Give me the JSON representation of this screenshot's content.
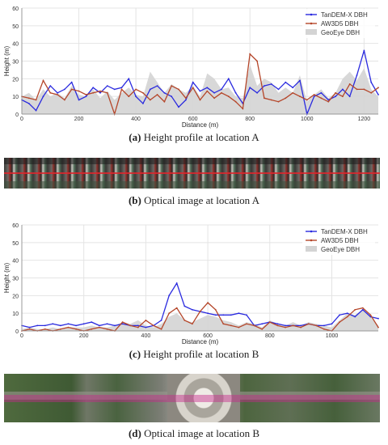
{
  "chart_data": [
    {
      "type": "line",
      "xlabel": "Distance (m)",
      "ylabel": "Height (m)",
      "xlim": [
        0,
        1250
      ],
      "ylim": [
        0,
        60
      ],
      "xticks": [
        0,
        200,
        400,
        600,
        800,
        1000,
        1200
      ],
      "yticks": [
        0,
        10,
        20,
        30,
        40,
        50,
        60
      ],
      "grid": true,
      "legend_position": "top-right",
      "x": [
        0,
        25,
        50,
        75,
        100,
        125,
        150,
        175,
        200,
        225,
        250,
        275,
        300,
        325,
        350,
        375,
        400,
        425,
        450,
        475,
        500,
        525,
        550,
        575,
        600,
        625,
        650,
        675,
        700,
        725,
        750,
        775,
        800,
        825,
        850,
        875,
        900,
        925,
        950,
        975,
        1000,
        1025,
        1050,
        1075,
        1100,
        1125,
        1150,
        1175,
        1200,
        1225,
        1250
      ],
      "series": [
        {
          "name": "TanDEM-X DBH",
          "color": "#2a2adf",
          "kind": "line",
          "values": [
            8,
            6,
            2,
            10,
            16,
            12,
            14,
            18,
            8,
            10,
            15,
            12,
            16,
            14,
            15,
            20,
            10,
            6,
            14,
            16,
            12,
            10,
            4,
            8,
            18,
            13,
            15,
            12,
            14,
            20,
            12,
            6,
            15,
            12,
            16,
            17,
            14,
            18,
            15,
            19,
            0,
            10,
            12,
            8,
            10,
            14,
            10,
            22,
            36,
            18,
            11
          ]
        },
        {
          "name": "AW3D5 DBH",
          "color": "#b5462a",
          "kind": "line",
          "values": [
            10,
            9,
            8,
            19,
            12,
            11,
            8,
            14,
            13,
            11,
            12,
            13,
            12,
            0,
            14,
            10,
            14,
            12,
            8,
            11,
            7,
            16,
            14,
            9,
            15,
            8,
            13,
            9,
            12,
            10,
            7,
            3,
            34,
            30,
            9,
            8,
            7,
            9,
            12,
            10,
            8,
            11,
            9,
            7,
            12,
            10,
            17,
            14,
            14,
            12,
            15
          ]
        },
        {
          "name": "GeoEye DBH",
          "color": "#d4d4d4",
          "kind": "area",
          "values": [
            10,
            12,
            8,
            14,
            10,
            12,
            9,
            16,
            11,
            10,
            14,
            9,
            13,
            8,
            12,
            15,
            11,
            10,
            24,
            18,
            12,
            17,
            14,
            12,
            16,
            10,
            23,
            20,
            14,
            15,
            10,
            9,
            28,
            16,
            20,
            18,
            12,
            15,
            12,
            22,
            7,
            11,
            14,
            9,
            12,
            20,
            24,
            19,
            26,
            14,
            10
          ]
        }
      ]
    },
    {
      "type": "line",
      "xlabel": "Distance (m)",
      "ylabel": "Height (m)",
      "xlim": [
        0,
        1150
      ],
      "ylim": [
        0,
        60
      ],
      "xticks": [
        0,
        200,
        400,
        600,
        800,
        1000
      ],
      "yticks": [
        0,
        10,
        20,
        30,
        40,
        50,
        60
      ],
      "grid": true,
      "legend_position": "top-right",
      "x": [
        0,
        25,
        50,
        75,
        100,
        125,
        150,
        175,
        200,
        225,
        250,
        275,
        300,
        325,
        350,
        375,
        400,
        425,
        450,
        475,
        500,
        525,
        550,
        575,
        600,
        625,
        650,
        675,
        700,
        725,
        750,
        775,
        800,
        825,
        850,
        875,
        900,
        925,
        950,
        975,
        1000,
        1025,
        1050,
        1075,
        1100,
        1125,
        1150
      ],
      "series": [
        {
          "name": "TanDEM-X DBH",
          "color": "#2a2adf",
          "kind": "line",
          "values": [
            3,
            2,
            3,
            3,
            4,
            3,
            4,
            3,
            4,
            5,
            3,
            4,
            3,
            4,
            3,
            3,
            2,
            3,
            6,
            20,
            27,
            14,
            12,
            11,
            10,
            9,
            9,
            9,
            10,
            9,
            3,
            4,
            5,
            4,
            3,
            3,
            3,
            4,
            3,
            3,
            4,
            9,
            10,
            8,
            12,
            8,
            7
          ]
        },
        {
          "name": "AW3D5 DBH",
          "color": "#b5462a",
          "kind": "line",
          "values": [
            0,
            1,
            0,
            1,
            0,
            1,
            2,
            1,
            0,
            1,
            2,
            1,
            0,
            5,
            3,
            2,
            6,
            3,
            1,
            10,
            13,
            6,
            4,
            11,
            16,
            12,
            4,
            3,
            2,
            4,
            3,
            1,
            5,
            3,
            2,
            3,
            2,
            4,
            3,
            1,
            0,
            5,
            8,
            12,
            13,
            9,
            2
          ]
        },
        {
          "name": "GeoEye DBH",
          "color": "#d4d4d4",
          "kind": "area",
          "values": [
            1,
            2,
            1,
            1,
            2,
            1,
            2,
            2,
            2,
            3,
            2,
            2,
            3,
            5,
            4,
            6,
            3,
            2,
            4,
            8,
            10,
            6,
            5,
            7,
            9,
            8,
            6,
            5,
            3,
            5,
            4,
            2,
            6,
            4,
            3,
            5,
            3,
            5,
            4,
            3,
            2,
            6,
            10,
            9,
            12,
            8,
            3
          ]
        }
      ]
    }
  ],
  "captions": {
    "a": {
      "letter": "(a)",
      "text": "Height profile at location A"
    },
    "b": {
      "letter": "(b)",
      "text": "Optical image at location A"
    },
    "c": {
      "letter": "(c)",
      "text": "Height profile at location B"
    },
    "d": {
      "letter": "(d)",
      "text": "Optical image at location B"
    }
  }
}
